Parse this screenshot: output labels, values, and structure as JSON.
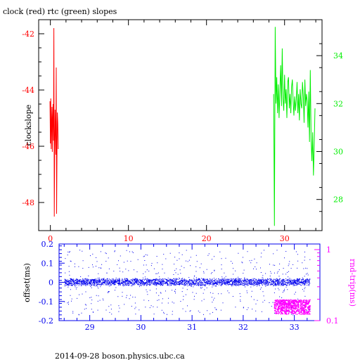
{
  "page": {
    "footer": "2014-09-28 boson.physics.ubc.ca"
  },
  "chart_data": [
    {
      "type": "line",
      "title": "clock (red) rtc (green) slopes",
      "xlabel": "",
      "ylabel": "clockslope",
      "xlim": [
        -1.5,
        34.8
      ],
      "x_ticks": [
        0,
        10,
        20,
        30
      ],
      "ylim": [
        -49,
        -41.5
      ],
      "y_ticks": [
        -48,
        -46,
        -44,
        -42
      ],
      "y2lim": [
        26.7,
        35.5
      ],
      "y2_ticks": [
        28,
        30,
        32,
        34
      ],
      "colors": {
        "axes": "#000000",
        "clock": "#ff0000",
        "rtc": "#00ee00",
        "ticks_x": "#ff0000"
      },
      "series": [
        {
          "name": "clock",
          "axis": "left",
          "color": "#ff0000",
          "x": [
            -0.05,
            0.0,
            0.05,
            0.1,
            0.15,
            0.2,
            0.25,
            0.3,
            0.35,
            0.4,
            0.45,
            0.5,
            0.55,
            0.6,
            0.65,
            0.7,
            0.75,
            0.8,
            0.85,
            0.9,
            0.95,
            1.0
          ],
          "values": [
            -44.4,
            -45.9,
            -44.3,
            -46.1,
            -45.2,
            -44.6,
            -46.2,
            -45.0,
            -44.5,
            -45.8,
            -41.8,
            -48.5,
            -46.0,
            -44.7,
            -45.5,
            -46.3,
            -43.2,
            -48.4,
            -46.0,
            -44.8,
            -45.2,
            -46.1
          ]
        },
        {
          "name": "rtc",
          "axis": "right",
          "color": "#00ee00",
          "x": [
            28.6,
            28.7,
            28.8,
            28.9,
            29.0,
            29.1,
            29.2,
            29.3,
            29.4,
            29.5,
            29.6,
            29.7,
            29.8,
            29.9,
            30.0,
            30.1,
            30.2,
            30.3,
            30.4,
            30.5,
            30.6,
            30.7,
            30.8,
            30.9,
            31.0,
            31.1,
            31.2,
            31.3,
            31.4,
            31.5,
            31.6,
            31.7,
            31.8,
            31.9,
            32.0,
            32.1,
            32.2,
            32.3,
            32.4,
            32.5,
            32.6,
            32.7,
            32.8,
            32.9,
            33.0,
            33.1,
            33.2,
            33.3,
            33.4,
            33.5,
            33.6,
            33.7,
            33.8,
            33.9
          ],
          "values": [
            32.4,
            26.9,
            35.2,
            32.0,
            33.1,
            31.6,
            32.8,
            31.4,
            32.5,
            33.6,
            31.9,
            34.3,
            32.2,
            31.7,
            33.2,
            32.0,
            32.6,
            31.4,
            32.9,
            33.1,
            31.8,
            32.4,
            31.6,
            32.7,
            33.0,
            32.1,
            31.5,
            32.3,
            31.7,
            32.2,
            32.9,
            31.6,
            32.4,
            31.3,
            32.6,
            32.0,
            31.8,
            32.9,
            32.3,
            31.2,
            33.0,
            31.9,
            32.4,
            32.1,
            31.0,
            32.5,
            30.4,
            33.4,
            30.5,
            29.6,
            30.8,
            29.0,
            30.3,
            31.8
          ]
        }
      ]
    },
    {
      "type": "scatter",
      "title": "",
      "xlabel": "",
      "ylabel": "offset(ms)",
      "y2label": "rnd-trip(ms)",
      "xlim": [
        28.4,
        33.5
      ],
      "x_ticks": [
        29,
        30,
        31,
        32,
        33
      ],
      "ylim": [
        -0.2,
        0.2
      ],
      "y_ticks": [
        -0.2,
        -0.1,
        0,
        0.1,
        0.2
      ],
      "y2_scale": "log",
      "y2lim": [
        0.1,
        1.2
      ],
      "y2_ticks": [
        0.1,
        1
      ],
      "colors": {
        "offset": "#0000ee",
        "rnd_trip": "#ff00ff",
        "axes": "#0000ee"
      },
      "series": [
        {
          "name": "offset",
          "axis": "left",
          "color": "#0000ee",
          "x_range": [
            28.5,
            33.3
          ],
          "band": [
            -0.012,
            0.018
          ],
          "outlier_range": [
            -0.17,
            0.17
          ],
          "outliers_per_unit": 130
        },
        {
          "name": "rnd-trip",
          "axis": "right",
          "color": "#ff00ff",
          "x_range": [
            32.6,
            33.3
          ],
          "band": [
            0.125,
            0.2
          ]
        }
      ]
    }
  ]
}
